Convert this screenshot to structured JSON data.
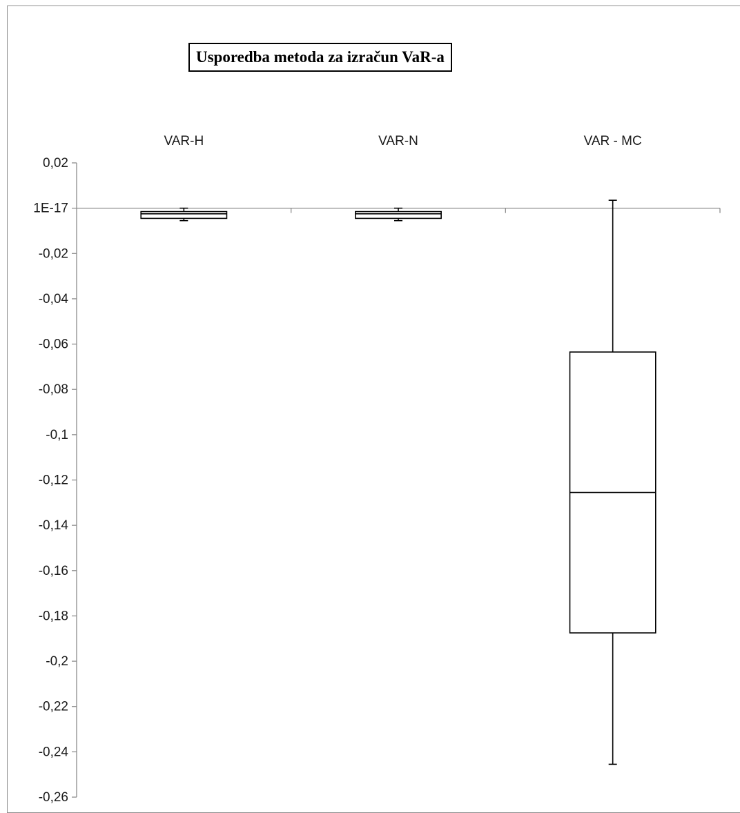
{
  "chart_data": {
    "type": "boxplot",
    "title": "Usporedba metoda za izračun VaR-a",
    "categories": [
      "VAR-H",
      "VAR-N",
      "VAR - MC"
    ],
    "series": [
      {
        "category": "VAR-H",
        "min": -0.0055,
        "q1": -0.0045,
        "median": -0.0025,
        "q3": -0.0015,
        "max": 0.0
      },
      {
        "category": "VAR-N",
        "min": -0.0055,
        "q1": -0.0045,
        "median": -0.0025,
        "q3": -0.0015,
        "max": 0.0
      },
      {
        "category": "VAR - MC",
        "min": -0.2455,
        "q1": -0.1875,
        "median": -0.1255,
        "q3": -0.0635,
        "max": 0.0035
      }
    ],
    "y_ticks": [
      {
        "value": 0.02,
        "label": "0,02"
      },
      {
        "value": 0.0,
        "label": "1E-17"
      },
      {
        "value": -0.02,
        "label": "-0,02"
      },
      {
        "value": -0.04,
        "label": "-0,04"
      },
      {
        "value": -0.06,
        "label": "-0,06"
      },
      {
        "value": -0.08,
        "label": "-0,08"
      },
      {
        "value": -0.1,
        "label": "-0,1"
      },
      {
        "value": -0.12,
        "label": "-0,12"
      },
      {
        "value": -0.14,
        "label": "-0,14"
      },
      {
        "value": -0.16,
        "label": "-0,16"
      },
      {
        "value": -0.18,
        "label": "-0,18"
      },
      {
        "value": -0.2,
        "label": "-0,2"
      },
      {
        "value": -0.22,
        "label": "-0,22"
      },
      {
        "value": -0.24,
        "label": "-0,24"
      },
      {
        "value": -0.26,
        "label": "-0,26"
      }
    ],
    "ylim": [
      -0.26,
      0.02
    ],
    "category_axis_at": 0.0,
    "category_labels_position": "top",
    "grid": false,
    "legend": "none",
    "colors": {
      "box_fill": "#ffffff",
      "box_stroke": "#000000",
      "axis": "#8c8c8c"
    }
  }
}
